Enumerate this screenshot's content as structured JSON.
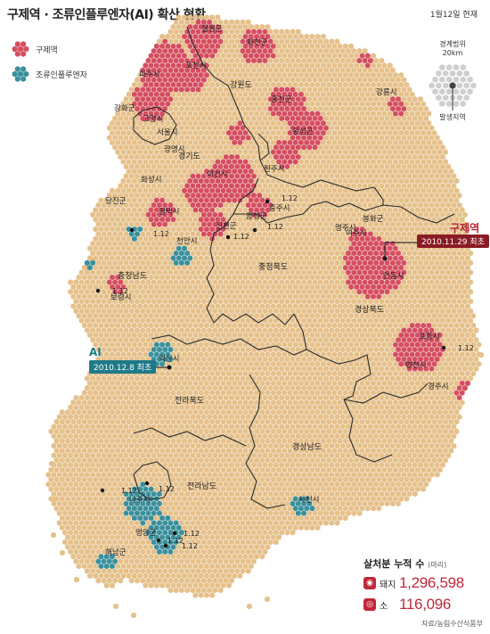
{
  "title": "구제역 · 조류인플루엔자(AI) 확산 현황",
  "date": "1월12일 현재",
  "legend": {
    "fmd": {
      "label": "구제역",
      "color": "#d44e5f"
    },
    "ai": {
      "label": "조류인플루엔자",
      "color": "#3a8f9a"
    }
  },
  "scale": {
    "title": "경계범위",
    "distance": "20km",
    "center_label": "발생지역"
  },
  "first_cases": {
    "fmd": {
      "title": "구제역",
      "date": "2010.11.29 최초"
    },
    "ai": {
      "title": "AI",
      "date": "2010.12.8 최초"
    }
  },
  "region_labels": [
    {
      "name": "강원도"
    },
    {
      "name": "경기도"
    },
    {
      "name": "충청북도"
    },
    {
      "name": "충청남도"
    },
    {
      "name": "경상북도"
    },
    {
      "name": "전라북도"
    },
    {
      "name": "경상남도"
    },
    {
      "name": "전라남도"
    }
  ],
  "fmd_places": [
    "철원군",
    "화천군",
    "파주시",
    "포천시",
    "강원도",
    "강릉시",
    "강화군",
    "고양시",
    "서울시",
    "홍천군",
    "횡성군",
    "광명시",
    "원주시",
    "이천시",
    "화성시",
    "평택시",
    "여주시",
    "진천군",
    "음성군",
    "충주시",
    "당진군",
    "천안시",
    "영주시",
    "봉화군",
    "안동시",
    "보령시",
    "포항시",
    "영천시",
    "경주시"
  ],
  "ai_places": [
    "익산시",
    "나주시",
    "영암군",
    "해남군",
    "사천시"
  ],
  "date_marks": [
    "1.12",
    "1.12",
    "1.12",
    "1.12",
    "1.12",
    "1.12",
    "1.12",
    "1.12",
    "1.12",
    "1.12",
    "1.12"
  ],
  "stats": {
    "title": "살처분 누적 수",
    "unit": "(마리)",
    "pig_label": "돼지",
    "pig_value": "1,296,598",
    "cow_label": "소",
    "cow_value": "116,096"
  },
  "source": "자료/농림수산식품부",
  "colors": {
    "land": "#e5c08a",
    "fmd": "#d44e5f",
    "ai": "#3a8f9a",
    "border": "#2b2b2b"
  }
}
